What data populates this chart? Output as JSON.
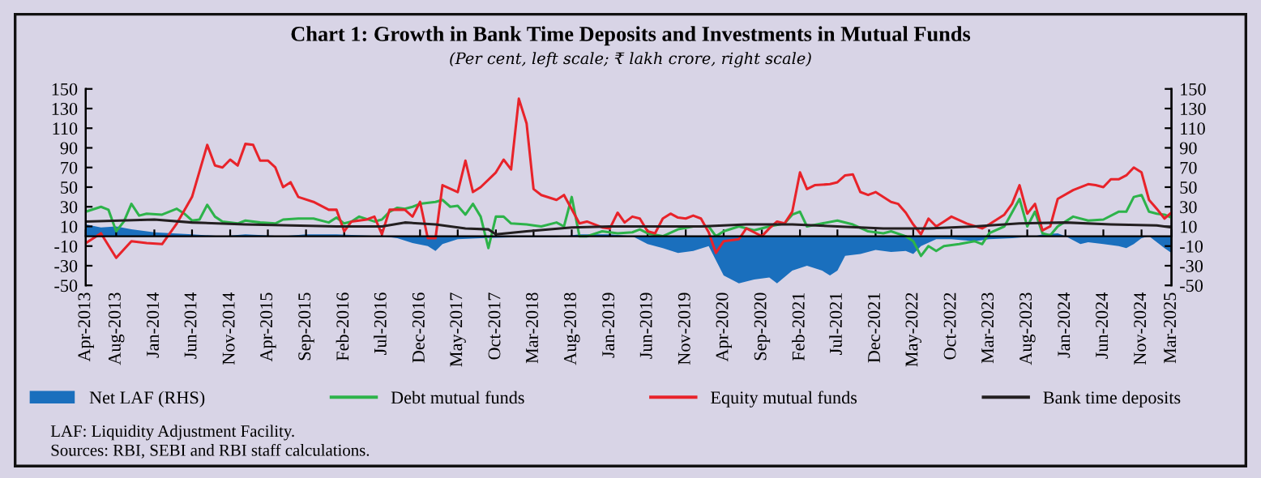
{
  "chart_data": {
    "type": "line",
    "title": "Chart 1: Growth in Bank Time Deposits and Investments in Mutual Funds",
    "subtitle": "(Per cent, left scale; ₹ lakh crore, right scale)",
    "annotations": [
      "LAF: Liquidity Adjustment Facility.",
      "Sources: RBI, SEBI and RBI staff calculations."
    ],
    "series": [
      {
        "name": "Net LAF (RHS)",
        "type": "area",
        "axis": "y2",
        "color": "#1a6fbd",
        "x": [
          "2013-04",
          "2013-06",
          "2013-08",
          "2013-10",
          "2014-01",
          "2014-06",
          "2014-10",
          "2015-01",
          "2015-06",
          "2015-09",
          "2016-01",
          "2016-07",
          "2016-09",
          "2016-11",
          "2017-01",
          "2017-02",
          "2017-03",
          "2017-05",
          "2017-08",
          "2018-01",
          "2018-06",
          "2018-09",
          "2019-01",
          "2019-04",
          "2019-06",
          "2019-08",
          "2019-10",
          "2019-12",
          "2020-02",
          "2020-04",
          "2020-06",
          "2020-08",
          "2020-10",
          "2020-11",
          "2021-01",
          "2021-03",
          "2021-05",
          "2021-06",
          "2021-07",
          "2021-08",
          "2021-10",
          "2021-12",
          "2022-02",
          "2022-04",
          "2022-05",
          "2022-06",
          "2022-08",
          "2022-10",
          "2023-01",
          "2023-03",
          "2023-06",
          "2023-09",
          "2023-10",
          "2023-12",
          "2024-01",
          "2024-03",
          "2024-04",
          "2024-06",
          "2024-08",
          "2024-09",
          "2024-10",
          "2024-11",
          "2024-12",
          "2025-02",
          "2025-03"
        ],
        "values": [
          12,
          9,
          10,
          7,
          4,
          2,
          0,
          2,
          0,
          2,
          2,
          0,
          -2,
          -7,
          -10,
          -15,
          -8,
          -3,
          -2,
          -1,
          -1,
          2,
          2,
          0,
          -8,
          -12,
          -17,
          -15,
          -10,
          -40,
          -48,
          -44,
          -42,
          -48,
          -35,
          -30,
          -35,
          -40,
          -35,
          -20,
          -18,
          -14,
          -16,
          -15,
          -18,
          -10,
          -3,
          -3,
          -5,
          -3,
          -2,
          0,
          2,
          3,
          0,
          -8,
          -6,
          -8,
          -10,
          -12,
          -8,
          -2,
          0,
          -12,
          -17
        ]
      },
      {
        "name": "Debt mutual funds",
        "color": "#2db34a",
        "x": [
          "2013-04",
          "2013-06",
          "2013-07",
          "2013-08",
          "2013-09",
          "2013-10",
          "2013-11",
          "2013-12",
          "2014-02",
          "2014-04",
          "2014-05",
          "2014-06",
          "2014-07",
          "2014-08",
          "2014-09",
          "2014-10",
          "2014-12",
          "2015-01",
          "2015-03",
          "2015-05",
          "2015-06",
          "2015-08",
          "2015-10",
          "2015-12",
          "2016-01",
          "2016-02",
          "2016-03",
          "2016-04",
          "2016-06",
          "2016-07",
          "2016-08",
          "2016-09",
          "2016-10",
          "2016-11",
          "2016-12",
          "2017-02",
          "2017-03",
          "2017-04",
          "2017-05",
          "2017-06",
          "2017-07",
          "2017-08",
          "2017-09",
          "2017-10",
          "2017-11",
          "2017-12",
          "2018-02",
          "2018-03",
          "2018-04",
          "2018-06",
          "2018-07",
          "2018-08",
          "2018-09",
          "2018-10",
          "2018-12",
          "2019-02",
          "2019-04",
          "2019-05",
          "2019-06",
          "2019-08",
          "2019-10",
          "2019-12",
          "2020-02",
          "2020-03",
          "2020-04",
          "2020-06",
          "2020-08",
          "2020-10",
          "2020-12",
          "2021-01",
          "2021-02",
          "2021-03",
          "2021-05",
          "2021-07",
          "2021-09",
          "2021-11",
          "2022-01",
          "2022-02",
          "2022-04",
          "2022-05",
          "2022-06",
          "2022-07",
          "2022-08",
          "2022-09",
          "2022-11",
          "2023-01",
          "2023-02",
          "2023-03",
          "2023-05",
          "2023-07",
          "2023-08",
          "2023-09",
          "2023-10",
          "2023-11",
          "2023-12",
          "2024-02",
          "2024-04",
          "2024-06",
          "2024-08",
          "2024-09",
          "2024-10",
          "2024-11",
          "2024-12",
          "2025-01",
          "2025-02",
          "2025-03"
        ],
        "values": [
          25,
          30,
          27,
          5,
          15,
          33,
          21,
          23,
          22,
          28,
          23,
          16,
          17,
          32,
          20,
          15,
          13,
          16,
          14,
          13,
          17,
          18,
          18,
          14,
          19,
          13,
          15,
          20,
          15,
          17,
          25,
          29,
          28,
          30,
          33,
          35,
          37,
          30,
          31,
          22,
          33,
          20,
          -12,
          20,
          20,
          13,
          12,
          11,
          10,
          14,
          10,
          40,
          0,
          0,
          5,
          3,
          4,
          7,
          3,
          0,
          7,
          10,
          10,
          0,
          5,
          10,
          6,
          10,
          13,
          22,
          25,
          10,
          13,
          16,
          12,
          5,
          3,
          5,
          0,
          -5,
          -20,
          -10,
          -15,
          -10,
          -8,
          -5,
          -8,
          3,
          10,
          38,
          10,
          25,
          3,
          1,
          10,
          20,
          16,
          17,
          25,
          25,
          40,
          42,
          25,
          23,
          22,
          19
        ]
      },
      {
        "name": "Equity mutual funds",
        "color": "#e8232a",
        "x": [
          "2013-04",
          "2013-06",
          "2013-08",
          "2013-10",
          "2013-12",
          "2014-02",
          "2014-04",
          "2014-06",
          "2014-08",
          "2014-09",
          "2014-10",
          "2014-11",
          "2014-12",
          "2015-01",
          "2015-02",
          "2015-03",
          "2015-04",
          "2015-05",
          "2015-06",
          "2015-07",
          "2015-08",
          "2015-10",
          "2015-12",
          "2016-01",
          "2016-02",
          "2016-03",
          "2016-05",
          "2016-06",
          "2016-07",
          "2016-08",
          "2016-10",
          "2016-11",
          "2016-12",
          "2017-01",
          "2017-02",
          "2017-03",
          "2017-05",
          "2017-06",
          "2017-07",
          "2017-08",
          "2017-10",
          "2017-11",
          "2017-12",
          "2018-01",
          "2018-02",
          "2018-03",
          "2018-04",
          "2018-06",
          "2018-07",
          "2018-09",
          "2018-10",
          "2018-12",
          "2019-01",
          "2019-02",
          "2019-03",
          "2019-04",
          "2019-05",
          "2019-06",
          "2019-07",
          "2019-08",
          "2019-09",
          "2019-10",
          "2019-11",
          "2019-12",
          "2020-01",
          "2020-02",
          "2020-03",
          "2020-04",
          "2020-06",
          "2020-07",
          "2020-08",
          "2020-09",
          "2020-10",
          "2020-11",
          "2020-12",
          "2021-01",
          "2021-02",
          "2021-03",
          "2021-04",
          "2021-06",
          "2021-07",
          "2021-08",
          "2021-09",
          "2021-10",
          "2021-11",
          "2021-12",
          "2022-02",
          "2022-03",
          "2022-04",
          "2022-05",
          "2022-06",
          "2022-07",
          "2022-08",
          "2022-09",
          "2022-10",
          "2022-12",
          "2023-02",
          "2023-03",
          "2023-05",
          "2023-06",
          "2023-07",
          "2023-08",
          "2023-09",
          "2023-10",
          "2023-11",
          "2023-12",
          "2024-02",
          "2024-04",
          "2024-05",
          "2024-06",
          "2024-07",
          "2024-08",
          "2024-09",
          "2024-10",
          "2024-11",
          "2024-12",
          "2025-01",
          "2025-02",
          "2025-03"
        ],
        "values": [
          -7,
          3,
          -22,
          -5,
          -7,
          -8,
          13,
          40,
          93,
          72,
          70,
          78,
          72,
          94,
          93,
          77,
          77,
          70,
          50,
          55,
          40,
          35,
          27,
          27,
          5,
          15,
          17,
          20,
          2,
          27,
          27,
          20,
          35,
          -2,
          -2,
          52,
          45,
          77,
          45,
          50,
          65,
          78,
          68,
          140,
          115,
          48,
          42,
          37,
          42,
          13,
          15,
          9,
          8,
          24,
          14,
          20,
          18,
          5,
          3,
          18,
          23,
          19,
          18,
          21,
          18,
          4,
          -17,
          -5,
          -3,
          8,
          4,
          0,
          8,
          15,
          13,
          25,
          65,
          48,
          52,
          53,
          55,
          62,
          63,
          45,
          42,
          45,
          35,
          33,
          24,
          12,
          2,
          18,
          10,
          15,
          20,
          13,
          8,
          12,
          22,
          33,
          52,
          23,
          33,
          6,
          10,
          38,
          47,
          53,
          52,
          50,
          58,
          58,
          62,
          70,
          65,
          37,
          28,
          18,
          24
        ]
      },
      {
        "name": "Bank time deposits",
        "color": "#231f20",
        "x": [
          "2013-04",
          "2014-01",
          "2014-06",
          "2015-01",
          "2016-01",
          "2016-07",
          "2016-10",
          "2017-02",
          "2017-06",
          "2017-09",
          "2017-10",
          "2018-02",
          "2018-08",
          "2019-01",
          "2020-01",
          "2020-07",
          "2021-01",
          "2021-07",
          "2022-01",
          "2022-07",
          "2023-01",
          "2023-07",
          "2024-01",
          "2024-07",
          "2025-01",
          "2025-03"
        ],
        "values": [
          15,
          17,
          14,
          12,
          10,
          10,
          14,
          12,
          8,
          7,
          2,
          5,
          9,
          10,
          10,
          12,
          12,
          10,
          8,
          8,
          10,
          13,
          14,
          12,
          11,
          9
        ]
      }
    ],
    "xlim": [
      "2013-04",
      "2025-03"
    ],
    "xticks": [
      {
        "value": "2013-04",
        "label": "Apr-2013"
      },
      {
        "value": "2013-08",
        "label": "Aug-2013"
      },
      {
        "value": "2014-01",
        "label": "Jan-2014"
      },
      {
        "value": "2014-06",
        "label": "Jun-2014"
      },
      {
        "value": "2014-11",
        "label": "Nov-2014"
      },
      {
        "value": "2015-04",
        "label": "Apr-2015"
      },
      {
        "value": "2015-09",
        "label": "Sep-2015"
      },
      {
        "value": "2016-02",
        "label": "Feb-2016"
      },
      {
        "value": "2016-07",
        "label": "Jul-2016"
      },
      {
        "value": "2016-12",
        "label": "Dec-2016"
      },
      {
        "value": "2017-05",
        "label": "May-2017"
      },
      {
        "value": "2017-10",
        "label": "Oct-2017"
      },
      {
        "value": "2018-03",
        "label": "Mar-2018"
      },
      {
        "value": "2018-08",
        "label": "Aug-2018"
      },
      {
        "value": "2019-01",
        "label": "Jan-2019"
      },
      {
        "value": "2019-06",
        "label": "Jun-2019"
      },
      {
        "value": "2019-11",
        "label": "Nov-2019"
      },
      {
        "value": "2020-04",
        "label": "Apr-2020"
      },
      {
        "value": "2020-09",
        "label": "Sep-2020"
      },
      {
        "value": "2021-02",
        "label": "Feb-2021"
      },
      {
        "value": "2021-07",
        "label": "Jul-2021"
      },
      {
        "value": "2021-12",
        "label": "Dec-2021"
      },
      {
        "value": "2022-05",
        "label": "May-2022"
      },
      {
        "value": "2022-10",
        "label": "Oct-2022"
      },
      {
        "value": "2023-03",
        "label": "Mar-2023"
      },
      {
        "value": "2023-08",
        "label": "Aug-2023"
      },
      {
        "value": "2024-01",
        "label": "Jan-2024"
      },
      {
        "value": "2024-06",
        "label": "Jun-2024"
      },
      {
        "value": "2024-11",
        "label": "Nov-2024"
      },
      {
        "value": "2025-03",
        "label": "Mar-2025"
      }
    ],
    "ylim": [
      -50,
      150
    ],
    "yticks": [
      -50,
      -30,
      -10,
      10,
      30,
      50,
      70,
      90,
      110,
      130,
      150
    ],
    "y2lim": [
      -50,
      150
    ],
    "y2ticks": [
      -50,
      -30,
      -10,
      10,
      30,
      50,
      70,
      90,
      110,
      130,
      150
    ],
    "grid": false,
    "legend": "bottom"
  }
}
